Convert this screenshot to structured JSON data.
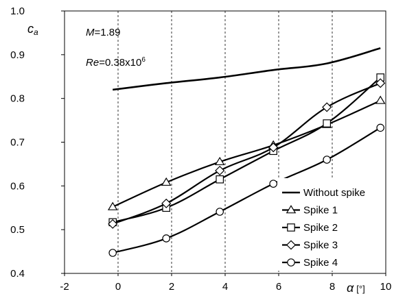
{
  "chart_data": {
    "type": "line",
    "ylabel_symbol": "c",
    "ylabel_subscript": "a",
    "xlabel_symbol": "α",
    "xlabel_unit": "[°]",
    "xlim": [
      -2,
      10
    ],
    "ylim": [
      0.4,
      1.0
    ],
    "x_ticks": [
      "-2",
      "0",
      "2",
      "4",
      "6",
      "8",
      "10"
    ],
    "y_ticks": [
      "0.4",
      "0.5",
      "0.6",
      "0.7",
      "0.8",
      "0.9",
      "1.0"
    ],
    "grid": "vertical-dashed",
    "legend_position": "bottom-right",
    "annotation_mach": {
      "symbol": "M",
      "value": "=1.89"
    },
    "annotation_re": {
      "symbol": "Re",
      "value": "=0.38x10",
      "exponent": "6"
    },
    "series": [
      {
        "name": "Without spike",
        "marker": "none",
        "x": [
          -0.2,
          1.8,
          3.8,
          5.8,
          7.8,
          9.8
        ],
        "y": [
          0.82,
          0.835,
          0.848,
          0.865,
          0.88,
          0.915
        ]
      },
      {
        "name": "Spike 1",
        "marker": "triangle",
        "x": [
          -0.2,
          1.8,
          3.8,
          5.8,
          7.8,
          9.8
        ],
        "y": [
          0.552,
          0.608,
          0.655,
          0.693,
          0.74,
          0.795
        ]
      },
      {
        "name": "Spike 2",
        "marker": "square",
        "x": [
          -0.2,
          1.8,
          3.8,
          5.8,
          7.8,
          9.8
        ],
        "y": [
          0.517,
          0.55,
          0.615,
          0.68,
          0.743,
          0.848
        ]
      },
      {
        "name": "Spike 3",
        "marker": "diamond",
        "x": [
          -0.2,
          1.8,
          3.8,
          5.8,
          7.8,
          9.8
        ],
        "y": [
          0.513,
          0.56,
          0.635,
          0.688,
          0.78,
          0.835
        ]
      },
      {
        "name": "Spike 4",
        "marker": "circle",
        "x": [
          -0.2,
          1.8,
          3.8,
          5.8,
          7.8,
          9.8
        ],
        "y": [
          0.447,
          0.48,
          0.541,
          0.605,
          0.66,
          0.733
        ]
      }
    ]
  }
}
